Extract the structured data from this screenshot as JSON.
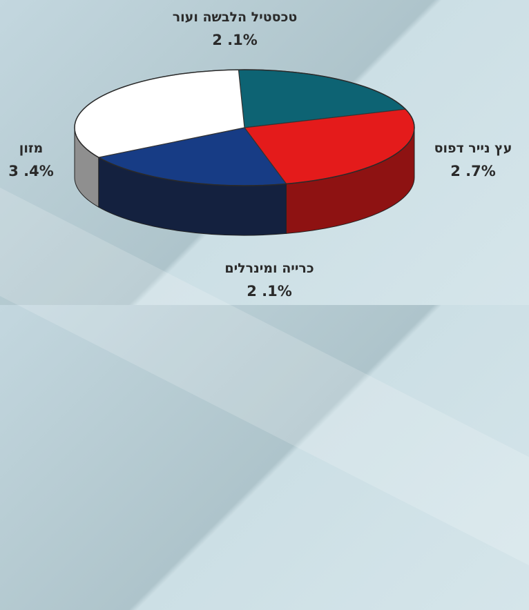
{
  "chart_data": {
    "type": "pie",
    "title": "",
    "categories": [
      "טכסטיל הלבשה ועור",
      "עץ נייר דפוס",
      "כרייה ומינרלים",
      "מזון"
    ],
    "values": [
      2.1,
      2.7,
      2.1,
      3.4
    ],
    "value_labels": [
      "2 .1%",
      "2 .7%",
      "2 .1%",
      "3 .4%"
    ],
    "colors": [
      "#0d6373",
      "#e41b1b",
      "#173c85",
      "#ffffff"
    ],
    "side_colors": [
      "#0b3c48",
      "#8e1212",
      "#14213f",
      "#8f8f8f"
    ],
    "legend": "none",
    "style": "3d"
  }
}
